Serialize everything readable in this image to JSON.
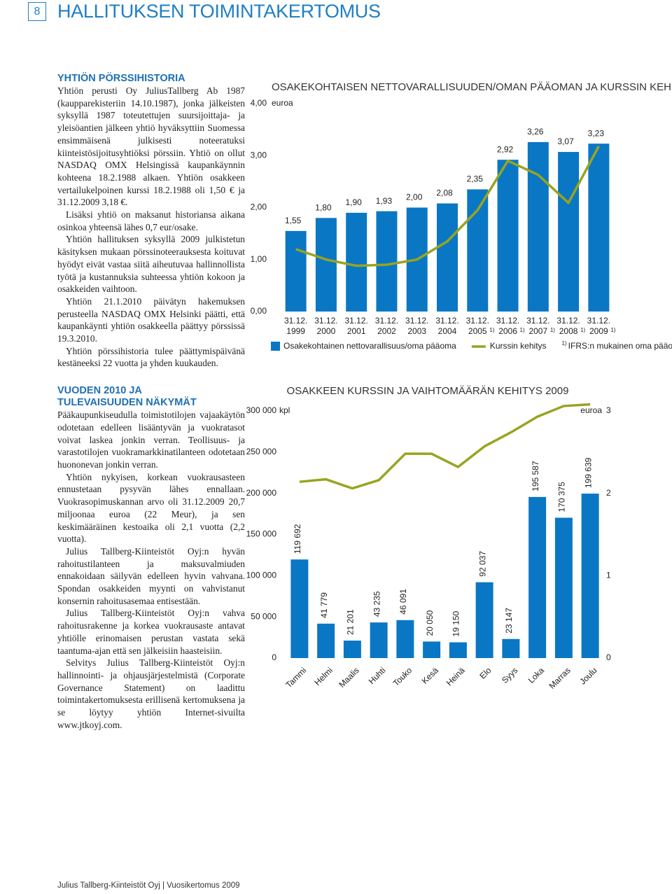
{
  "page_number": "8",
  "page_title": "HALLITUKSEN TOIMINTAKERTOMUS",
  "sections": [
    {
      "heading": [
        "YHTIÖN PÖRSSIHISTORIA"
      ],
      "paragraphs": [
        "Yhtiön perusti Oy JuliusTallberg Ab 1987 (kaupparekisteriin 14.10.1987), jonka jälkeisten syksyllä 1987 toteutettujen suursijoittaja- ja yleisöantien jälkeen yhtiö hyväksyttiin Suomessa ensimmäisenä julkisesti noteeratuksi kiinteistösijoitusyhtiöksi pörssiin. Yhtiö on ollut NASDAQ OMX Helsingissä kaupankäynnin kohteena 18.2.1988 alkaen. Yhtiön osakkeen vertailukelpoinen kurssi 18.2.1988 oli 1,50 € ja 31.12.2009 3,18 €.",
        "Lisäksi yhtiö on maksanut historiansa aikana osinkoa yhteensä lähes 0,7 eur/osake.",
        "Yhtiön hallituksen syksyllä 2009 julkistetun käsityksen mukaan pörssinoteerauksesta koituvat hyödyt eivät vastaa siitä aiheutuvaa hallinnollista työtä ja kustannuksia suhteessa yhtiön kokoon ja osakkeiden vaihtoon.",
        "Yhtiön 21.1.2010 päivätyn hakemuksen perusteella NASDAQ OMX Helsinki päätti, että kaupankäynti yhtiön osakkeella päättyy pörssissä 19.3.2010.",
        "Yhtiön pörssihistoria tulee päättymispäivänä kestäneeksi 22 vuotta ja yhden kuukauden."
      ]
    },
    {
      "heading": [
        "VUODEN 2010 JA",
        "TULEVAISUUDEN NÄKYMÄT"
      ],
      "paragraphs": [
        "Pääkaupunkiseudulla toimistotilojen vajaakäytön odotetaan edelleen lisääntyvän ja vuokratasot voivat laskea jonkin verran. Teollisuus- ja varastotilojen vuokramarkkinatilanteen odotetaan huononevan jonkin verran.",
        "Yhtiön nykyisen, korkean vuokrausasteen ennustetaan pysyvän lähes ennallaan. Vuokrasopimuskannan arvo oli 31.12.2009 20,7 miljoonaa euroa (22 Meur), ja sen keskimääräinen kestoaika oli 2,1 vuotta (2,2 vuotta).",
        "Julius Tallberg-Kiinteistöt Oyj:n hyvän rahoitustilanteen ja maksuvalmiuden ennakoidaan säilyvän edelleen hyvin vahvana. Spondan osakkeiden myynti on vahvistanut konsernin rahoitusasemaa entisestään.",
        "Julius Tallberg-Kiinteistöt Oyj:n vahva rahoitusrakenne ja korkea vuokrausaste antavat yhtiölle erinomaisen perustan vastata sekä taantuma-ajan että sen jälkeisiin haasteisiin.",
        "Selvitys Julius Tallberg-Kiinteistöt Oyj:n hallinnointi- ja ohjausjärjestelmistä (Corporate Governance Statement) on laadittu toimintakertomuksesta erillisenä kertomuksena ja se löytyy yhtiön Internet-sivuilta www.jtkoyj.com."
      ]
    }
  ],
  "chart_data": [
    {
      "type": "bar",
      "title": "OSAKEKOHTAISEN NETTOVARALLISUUDEN/OMAN PÄÄOMAN JA KURSSIN KEHITYS",
      "y_unit": "euroa",
      "categories": [
        [
          "31.12.",
          "1999"
        ],
        [
          "31.12.",
          "2000"
        ],
        [
          "31.12.",
          "2001"
        ],
        [
          "31.12.",
          "2002"
        ],
        [
          "31.12.",
          "2003"
        ],
        [
          "31.12.",
          "2004"
        ],
        [
          "31.12.",
          "2005"
        ],
        [
          "31.12.",
          "2006"
        ],
        [
          "31.12.",
          "2007"
        ],
        [
          "31.12.",
          "2008"
        ],
        [
          "31.12.",
          "2009"
        ]
      ],
      "category_notes": [
        null,
        null,
        null,
        null,
        null,
        null,
        "1)",
        "1)",
        "1)",
        "1)",
        "1)"
      ],
      "series": [
        {
          "name": "Osakekohtainen nettovarallisuus/oma pääoma",
          "type": "bar",
          "color": "#0a77c5",
          "values": [
            1.55,
            1.8,
            1.9,
            1.93,
            2.0,
            2.08,
            2.35,
            2.92,
            3.26,
            3.07,
            3.23
          ],
          "value_labels": [
            "1,55",
            "1,80",
            "1,90",
            "1,93",
            "2,00",
            "2,08",
            "2,35",
            "2,92",
            "3,26",
            "3,07",
            "3,23"
          ]
        },
        {
          "name": "Kurssin kehitys",
          "type": "line",
          "color": "#98a41f",
          "values": [
            1.2,
            1.0,
            0.88,
            0.9,
            1.0,
            1.35,
            1.95,
            2.9,
            2.63,
            2.09,
            3.18
          ]
        }
      ],
      "ylim": [
        0,
        4
      ],
      "yticks": [
        {
          "value": 0,
          "label": "0,00"
        },
        {
          "value": 1,
          "label": "1,00"
        },
        {
          "value": 2,
          "label": "2,00"
        },
        {
          "value": 3,
          "label": "3,00"
        },
        {
          "value": 4,
          "label": "4,00"
        }
      ],
      "note_marker": "1)",
      "note": "IFRS:n mukainen oma pääoma"
    },
    {
      "type": "bar",
      "title": "OSAKKEEN KURSSIN JA VAIHTOMÄÄRÄN KEHITYS 2009",
      "y_unit": "kpl",
      "y2_unit": "euroa",
      "categories": [
        "Tammi",
        "Helmi",
        "Maalis",
        "Huhti",
        "Touko",
        "Kesä",
        "Heinä",
        "Elo",
        "Syys",
        "Loka",
        "Marras",
        "Joulu"
      ],
      "series": [
        {
          "type": "bar",
          "color": "#0a77c5",
          "values": [
            119692,
            41779,
            21201,
            43235,
            46091,
            20050,
            19150,
            92037,
            23147,
            195587,
            170375,
            199639
          ],
          "value_labels": [
            "119 692",
            "41 779",
            "21 201",
            "43 235",
            "46 091",
            "20 050",
            "19 150",
            "92 037",
            "23 147",
            "195 587",
            "170 375",
            "199 639"
          ]
        },
        {
          "type": "line",
          "color": "#98a41f",
          "axis": "y2",
          "values": [
            2.14,
            2.17,
            2.06,
            2.16,
            2.48,
            2.48,
            2.32,
            2.57,
            2.74,
            2.93,
            3.06,
            3.08
          ]
        }
      ],
      "ylim": [
        0,
        300000
      ],
      "yticks": [
        0,
        {
          "value": 50000,
          "label": "50 000"
        },
        {
          "value": 100000,
          "label": "100 000"
        },
        {
          "value": 150000,
          "label": "150 000"
        },
        {
          "value": 200000,
          "label": "200 000"
        },
        {
          "value": 250000,
          "label": "250 000"
        },
        {
          "value": 300000,
          "label": "300 000"
        }
      ],
      "y2lim": [
        0,
        3
      ],
      "y2ticks": [
        0,
        1,
        2,
        3
      ]
    }
  ],
  "footer": "Julius Tallberg-Kiinteistöt Oyj | Vuosikertomus 2009"
}
